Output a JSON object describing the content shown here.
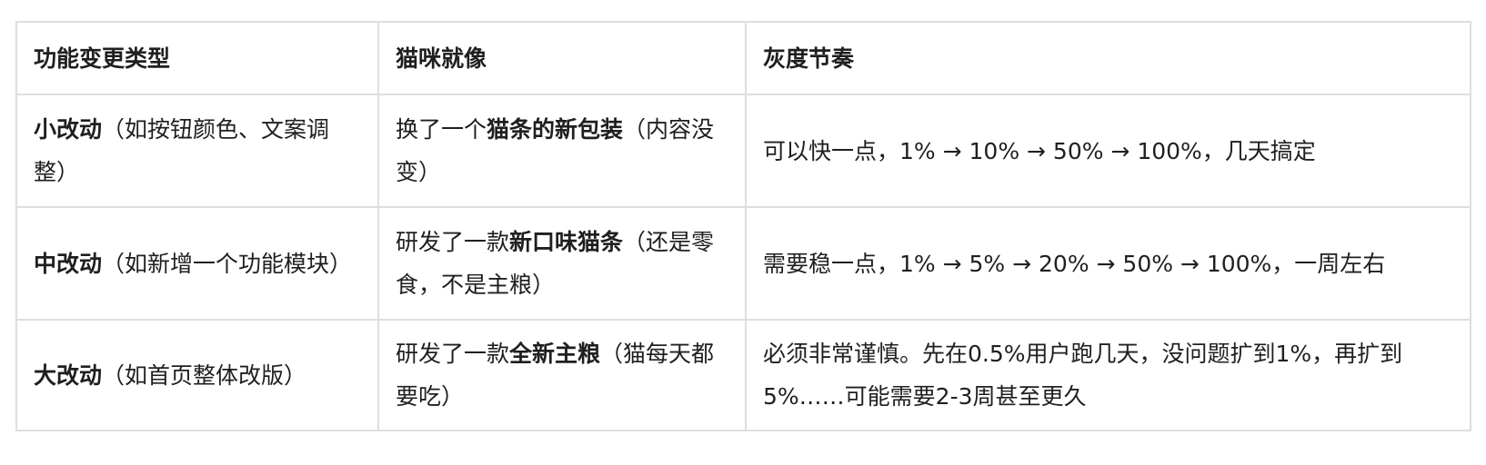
{
  "table": {
    "headers": [
      "功能变更类型",
      "猫咪就像",
      "灰度节奏"
    ],
    "rows": [
      {
        "type_bold": "小改动",
        "type_rest": "（如按钮颜色、文案调整）",
        "cat_pre": "换了一个",
        "cat_bold": "猫条的新包装",
        "cat_post": "（内容没变）",
        "pace": "可以快一点，1% → 10% → 50% → 100%，几天搞定"
      },
      {
        "type_bold": "中改动",
        "type_rest": "（如新增一个功能模块）",
        "cat_pre": "研发了一款",
        "cat_bold": "新口味猫条",
        "cat_post": "（还是零食，不是主粮）",
        "pace": "需要稳一点，1% → 5% → 20% → 50% → 100%，一周左右"
      },
      {
        "type_bold": "大改动",
        "type_rest": "（如首页整体改版）",
        "cat_pre": "研发了一款",
        "cat_bold": "全新主粮",
        "cat_post": "（猫每天都要吃）",
        "pace": "必须非常谨慎。先在0.5%用户跑几天，没问题扩到1%，再扩到5%……可能需要2-3周甚至更久"
      }
    ]
  }
}
